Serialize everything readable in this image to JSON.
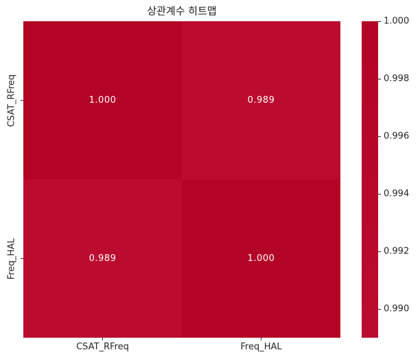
{
  "chart_data": {
    "type": "heatmap",
    "title": "상관계수 히트맵",
    "categories": [
      "CSAT_RFreq",
      "Freq_HAL"
    ],
    "x_tick_labels": [
      "CSAT_RFreq",
      "Freq_HAL"
    ],
    "y_tick_labels": [
      "CSAT_RFreq",
      "Freq_HAL"
    ],
    "matrix": [
      [
        1.0,
        0.989
      ],
      [
        0.989,
        1.0
      ]
    ],
    "cells": [
      {
        "row": 0,
        "col": 0,
        "label": "1.000",
        "value": 1.0,
        "color": "#b40426"
      },
      {
        "row": 0,
        "col": 1,
        "label": "0.989",
        "value": 0.989,
        "color": "#bb0c30"
      },
      {
        "row": 1,
        "col": 0,
        "label": "0.989",
        "value": 0.989,
        "color": "#bb0c30"
      },
      {
        "row": 1,
        "col": 1,
        "label": "1.000",
        "value": 1.0,
        "color": "#b40426"
      }
    ],
    "annotation_text_color": "#ffffff",
    "colorbar": {
      "position": "right",
      "vmin": 0.989,
      "vmax": 1.0,
      "ticks": [
        "1.000",
        "0.998",
        "0.996",
        "0.994",
        "0.992",
        "0.990"
      ],
      "tick_values": [
        1.0,
        0.998,
        0.996,
        0.994,
        0.992,
        0.99
      ],
      "top_color": "#b40426",
      "bottom_color": "#bb0c30"
    },
    "grid": false,
    "background": "#ffffff"
  }
}
